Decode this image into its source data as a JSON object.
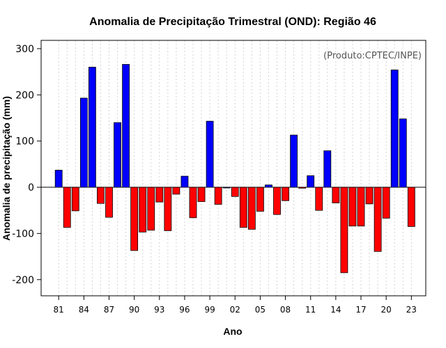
{
  "chart_data": {
    "type": "bar",
    "title": "Anomalia de Precipitação Trimestral (OND): Região 46",
    "xlabel": "Ano",
    "ylabel": "Anomalia de precipitação (mm)",
    "annotation": "(Produto:CPTEC/INPE)",
    "ylim": [
      -235,
      318
    ],
    "yticks": [
      -200,
      -100,
      0,
      100,
      200,
      300
    ],
    "ytick_labels": [
      "-200",
      "-100",
      "0",
      "100",
      "200",
      "300"
    ],
    "grid": true,
    "positive_color": "#0000ff",
    "negative_color": "#ff0000",
    "years": [
      1981,
      1982,
      1983,
      1984,
      1985,
      1986,
      1987,
      1988,
      1989,
      1990,
      1991,
      1992,
      1993,
      1994,
      1995,
      1996,
      1997,
      1998,
      1999,
      2000,
      2001,
      2002,
      2003,
      2004,
      2005,
      2006,
      2007,
      2008,
      2009,
      2010,
      2011,
      2012,
      2013,
      2014,
      2015,
      2016,
      2017,
      2018,
      2019,
      2020,
      2021,
      2022,
      2023
    ],
    "values": [
      37,
      -87,
      -51,
      193,
      260,
      -35,
      -65,
      140,
      266,
      -137,
      -97,
      -93,
      -32,
      -94,
      -15,
      24,
      -66,
      -31,
      143,
      -37,
      0,
      -20,
      -87,
      -91,
      -52,
      5,
      -59,
      -29,
      113,
      -2,
      25,
      -50,
      79,
      -34,
      -185,
      -84,
      -84,
      -36,
      -139,
      -67,
      254,
      148,
      -85
    ],
    "xtick_labels": [
      "81",
      "84",
      "87",
      "90",
      "93",
      "96",
      "99",
      "02",
      "05",
      "08",
      "11",
      "14",
      "17",
      "20",
      "23"
    ]
  }
}
